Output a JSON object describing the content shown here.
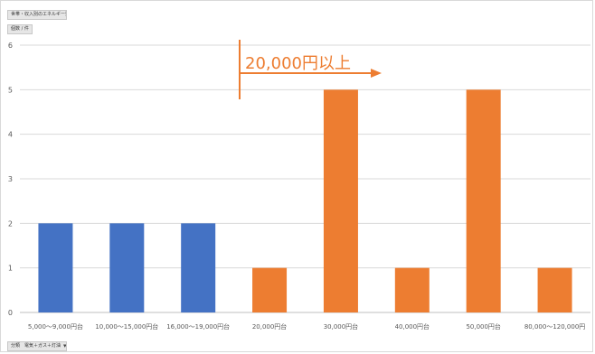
{
  "field_buttons": {
    "top_filter": "世帯・収入別のエネルギー費",
    "value_field": "個数 / 件",
    "axis_field": "分類　電気＋ガス＋灯油"
  },
  "icons": {
    "filter": "filter-dropdown-icon"
  },
  "colors": {
    "blue": "#4472c4",
    "orange": "#ed7d31",
    "grid": "#d9d9d9",
    "axis": "#595959"
  },
  "chart_data": {
    "type": "bar",
    "categories": [
      "5,000～9,000円台",
      "10,000～15,000円台",
      "16,000～19,000円台",
      "20,000円台",
      "30,000円台",
      "40,000円台",
      "50,000円台",
      "80,000～120,000円"
    ],
    "values": [
      2,
      2,
      2,
      1,
      5,
      1,
      5,
      1
    ],
    "bar_colors": [
      "#4472c4",
      "#4472c4",
      "#4472c4",
      "#ed7d31",
      "#ed7d31",
      "#ed7d31",
      "#ed7d31",
      "#ed7d31"
    ],
    "ylim": [
      0,
      6
    ],
    "yticks": [
      "0",
      "1",
      "2",
      "3",
      "4",
      "5",
      "6"
    ],
    "grid": true,
    "annotation": {
      "text": "20,000円以上",
      "color": "#ed7d31"
    }
  }
}
